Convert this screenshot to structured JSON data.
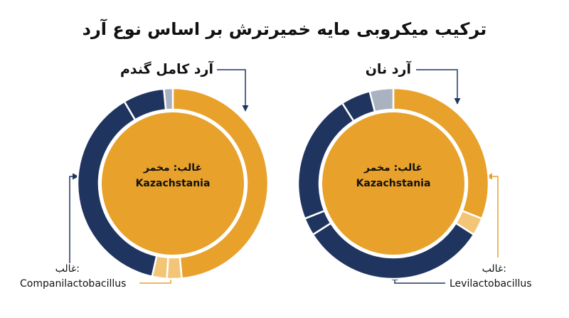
{
  "title": "ترکیب میکروبی مایه خمیرترش بر اساس نوع آرد",
  "chart_data": [
    {
      "type": "donut",
      "title": "آرد کامل گندم",
      "values": [
        48.5,
        2.5,
        2.5,
        38,
        7,
        1.5
      ],
      "colors": [
        "#E8A12B",
        "#F3C577",
        "#F3C577",
        "#1F3560",
        "#1F3560",
        "#A9B2C0"
      ],
      "inner_color": "#E8A12B",
      "center_label": "غالب: مخمر",
      "center_name": "Kazachstania",
      "annotation_label": "غالب:",
      "annotation_name": "Companilactobacillus"
    },
    {
      "type": "donut",
      "title": "آرد نان",
      "values": [
        31,
        3,
        32,
        3,
        22,
        5,
        4
      ],
      "colors": [
        "#E8A12B",
        "#F3C577",
        "#1F3560",
        "#1F3560",
        "#1F3560",
        "#1F3560",
        "#A9B2C0"
      ],
      "inner_color": "#E8A12B",
      "center_label": "غالب: مخمر",
      "center_name": "Kazachstania",
      "annotation_label": "غالب:",
      "annotation_name": "Levilactobacillus"
    }
  ]
}
